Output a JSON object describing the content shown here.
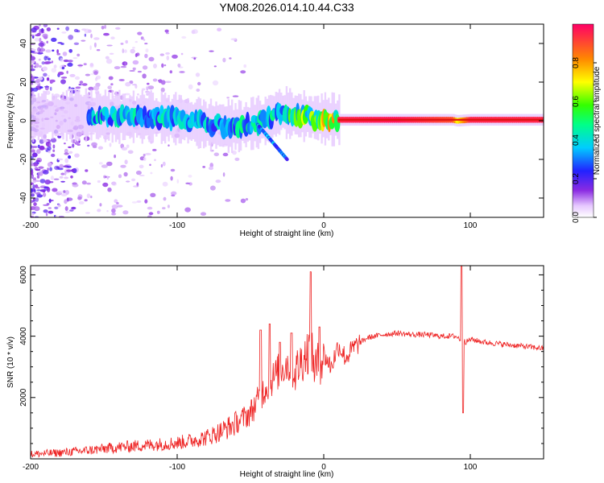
{
  "title": "YM08.2026.014.10.44.C33",
  "colors": {
    "trace": "#ee2222",
    "ridge": "#dd1111",
    "axis": "#000000"
  },
  "chart_data": [
    {
      "type": "heatmap",
      "name": "spectrogram",
      "xlabel": "Height of straight line (km)",
      "ylabel": "Frequency (Hz)",
      "xlim": [
        -200,
        150
      ],
      "ylim": [
        -50,
        50
      ],
      "xticks": [
        -200,
        -100,
        0,
        100
      ],
      "yticks": [
        -40,
        -20,
        0,
        20,
        40
      ],
      "x_tick_labels": [
        "-200",
        "-100",
        "0",
        "100"
      ],
      "y_tick_labels": [
        "-40",
        "-20",
        "0",
        "20",
        "40"
      ],
      "colorbar": {
        "label": "Normalized spectral amplitude",
        "range": [
          0,
          1
        ],
        "ticks": [
          0,
          0.2,
          0.4,
          0.6,
          0.8
        ],
        "tick_labels": [
          "0.0",
          "0.2",
          "0.4",
          "0.6",
          "0.8"
        ]
      },
      "ridge": {
        "description": "dominant frequency band",
        "x": [
          -200,
          -160,
          -140,
          -120,
          -100,
          -80,
          -60,
          -40,
          -30,
          -20,
          -10,
          0,
          10,
          50,
          88,
          91,
          100,
          150
        ],
        "center_hz": [
          2,
          3,
          2,
          2,
          1,
          -2,
          -3,
          0,
          5,
          3,
          2,
          1,
          0.5,
          0.5,
          0.5,
          0,
          0.5,
          0.5
        ],
        "amplitude": [
          0.3,
          0.5,
          0.55,
          0.5,
          0.55,
          0.5,
          0.55,
          0.6,
          0.65,
          0.7,
          0.8,
          0.9,
          0.95,
          0.97,
          0.9,
          0.7,
          0.95,
          0.95
        ]
      }
    },
    {
      "type": "line",
      "name": "snr",
      "xlabel": "Height of straight line (km)",
      "ylabel": "SNR (10 * v/v)",
      "xlim": [
        -200,
        150
      ],
      "ylim": [
        0,
        6300
      ],
      "xticks": [
        -200,
        -100,
        0,
        100
      ],
      "yticks": [
        2000,
        4000,
        6000
      ],
      "x_tick_labels": [
        "-200",
        "-100",
        "0",
        "100"
      ],
      "y_tick_labels": [
        "2000",
        "4000",
        "6000"
      ],
      "series": [
        {
          "name": "SNR",
          "x": [
            -200,
            -180,
            -160,
            -140,
            -120,
            -100,
            -90,
            -80,
            -70,
            -60,
            -50,
            -45,
            -40,
            -35,
            -30,
            -25,
            -20,
            -15,
            -10,
            -5,
            0,
            5,
            10,
            15,
            20,
            25,
            30,
            40,
            50,
            60,
            70,
            80,
            90,
            93,
            95,
            97,
            100,
            110,
            120,
            130,
            140,
            150
          ],
          "values": [
            150,
            200,
            280,
            380,
            450,
            520,
            600,
            700,
            900,
            1150,
            1500,
            1900,
            2300,
            2600,
            2900,
            3100,
            2800,
            3200,
            3600,
            2900,
            3400,
            3000,
            3700,
            3300,
            3600,
            3800,
            3950,
            4050,
            4100,
            4050,
            4050,
            4000,
            4000,
            3900,
            3950,
            3800,
            3900,
            3800,
            3750,
            3700,
            3650,
            3600
          ],
          "spikes": [
            {
              "x": -43,
              "value": 4200
            },
            {
              "x": -37,
              "value": 4400
            },
            {
              "x": -30,
              "value": 3800
            },
            {
              "x": -22,
              "value": 4100
            },
            {
              "x": -9,
              "value": 6100
            },
            {
              "x": -3,
              "value": 4300
            },
            {
              "x": 94,
              "value": 6300
            },
            {
              "x": 95,
              "value": 1500
            }
          ]
        }
      ]
    }
  ]
}
